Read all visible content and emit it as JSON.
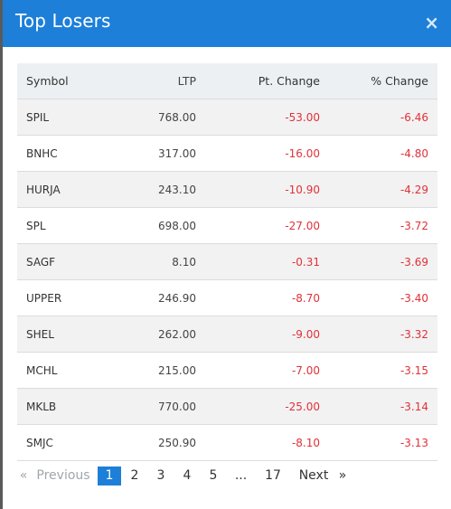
{
  "modal": {
    "title": "Top Losers",
    "close_icon": "×"
  },
  "table": {
    "columns": [
      "Symbol",
      "LTP",
      "Pt. Change",
      "% Change"
    ],
    "rows": [
      {
        "symbol": "SPIL",
        "ltp": "768.00",
        "pt_change": "-53.00",
        "pct_change": "-6.46"
      },
      {
        "symbol": "BNHC",
        "ltp": "317.00",
        "pt_change": "-16.00",
        "pct_change": "-4.80"
      },
      {
        "symbol": "HURJA",
        "ltp": "243.10",
        "pt_change": "-10.90",
        "pct_change": "-4.29"
      },
      {
        "symbol": "SPL",
        "ltp": "698.00",
        "pt_change": "-27.00",
        "pct_change": "-3.72"
      },
      {
        "symbol": "SAGF",
        "ltp": "8.10",
        "pt_change": "-0.31",
        "pct_change": "-3.69"
      },
      {
        "symbol": "UPPER",
        "ltp": "246.90",
        "pt_change": "-8.70",
        "pct_change": "-3.40"
      },
      {
        "symbol": "SHEL",
        "ltp": "262.00",
        "pt_change": "-9.00",
        "pct_change": "-3.32"
      },
      {
        "symbol": "MCHL",
        "ltp": "215.00",
        "pt_change": "-7.00",
        "pct_change": "-3.15"
      },
      {
        "symbol": "MKLB",
        "ltp": "770.00",
        "pt_change": "-25.00",
        "pct_change": "-3.14"
      },
      {
        "symbol": "SMJC",
        "ltp": "250.90",
        "pt_change": "-8.10",
        "pct_change": "-3.13"
      }
    ]
  },
  "pagination": {
    "prev_arrow": "«",
    "previous": "Previous",
    "pages": [
      "1",
      "2",
      "3",
      "4",
      "5"
    ],
    "ellipsis": "...",
    "last_page": "17",
    "next": "Next",
    "next_arrow": "»",
    "active_page": "1"
  },
  "colors": {
    "header_bg": "#1d7fd8",
    "negative": "#e0313a",
    "active_page_bg": "#1d7fd8"
  }
}
